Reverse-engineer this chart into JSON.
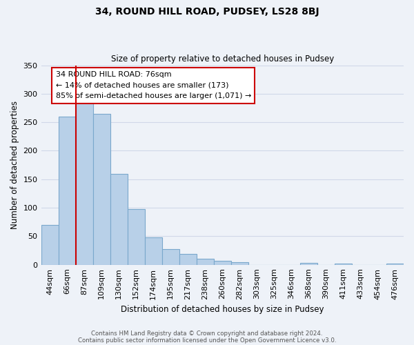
{
  "title": "34, ROUND HILL ROAD, PUDSEY, LS28 8BJ",
  "subtitle": "Size of property relative to detached houses in Pudsey",
  "xlabel": "Distribution of detached houses by size in Pudsey",
  "ylabel": "Number of detached properties",
  "categories": [
    "44sqm",
    "66sqm",
    "87sqm",
    "109sqm",
    "130sqm",
    "152sqm",
    "174sqm",
    "195sqm",
    "217sqm",
    "238sqm",
    "260sqm",
    "282sqm",
    "303sqm",
    "325sqm",
    "346sqm",
    "368sqm",
    "390sqm",
    "411sqm",
    "433sqm",
    "454sqm",
    "476sqm"
  ],
  "values": [
    70,
    260,
    295,
    265,
    160,
    98,
    48,
    28,
    19,
    10,
    7,
    5,
    0,
    0,
    0,
    3,
    0,
    2,
    0,
    0,
    2
  ],
  "bar_color": "#b8d0e8",
  "bar_edge_color": "#7aa8cc",
  "grid_color": "#d0d8e8",
  "vline_x": 1.5,
  "vline_color": "#cc0000",
  "annotation_title": "34 ROUND HILL ROAD: 76sqm",
  "annotation_line1": "← 14% of detached houses are smaller (173)",
  "annotation_line2": "85% of semi-detached houses are larger (1,071) →",
  "annotation_box_color": "#ffffff",
  "annotation_box_edgecolor": "#cc0000",
  "ylim": [
    0,
    350
  ],
  "yticks": [
    0,
    50,
    100,
    150,
    200,
    250,
    300,
    350
  ],
  "footnote1": "Contains HM Land Registry data © Crown copyright and database right 2024.",
  "footnote2": "Contains public sector information licensed under the Open Government Licence v3.0.",
  "bg_color": "#eef2f8",
  "plot_bg_color": "#eef2f8"
}
